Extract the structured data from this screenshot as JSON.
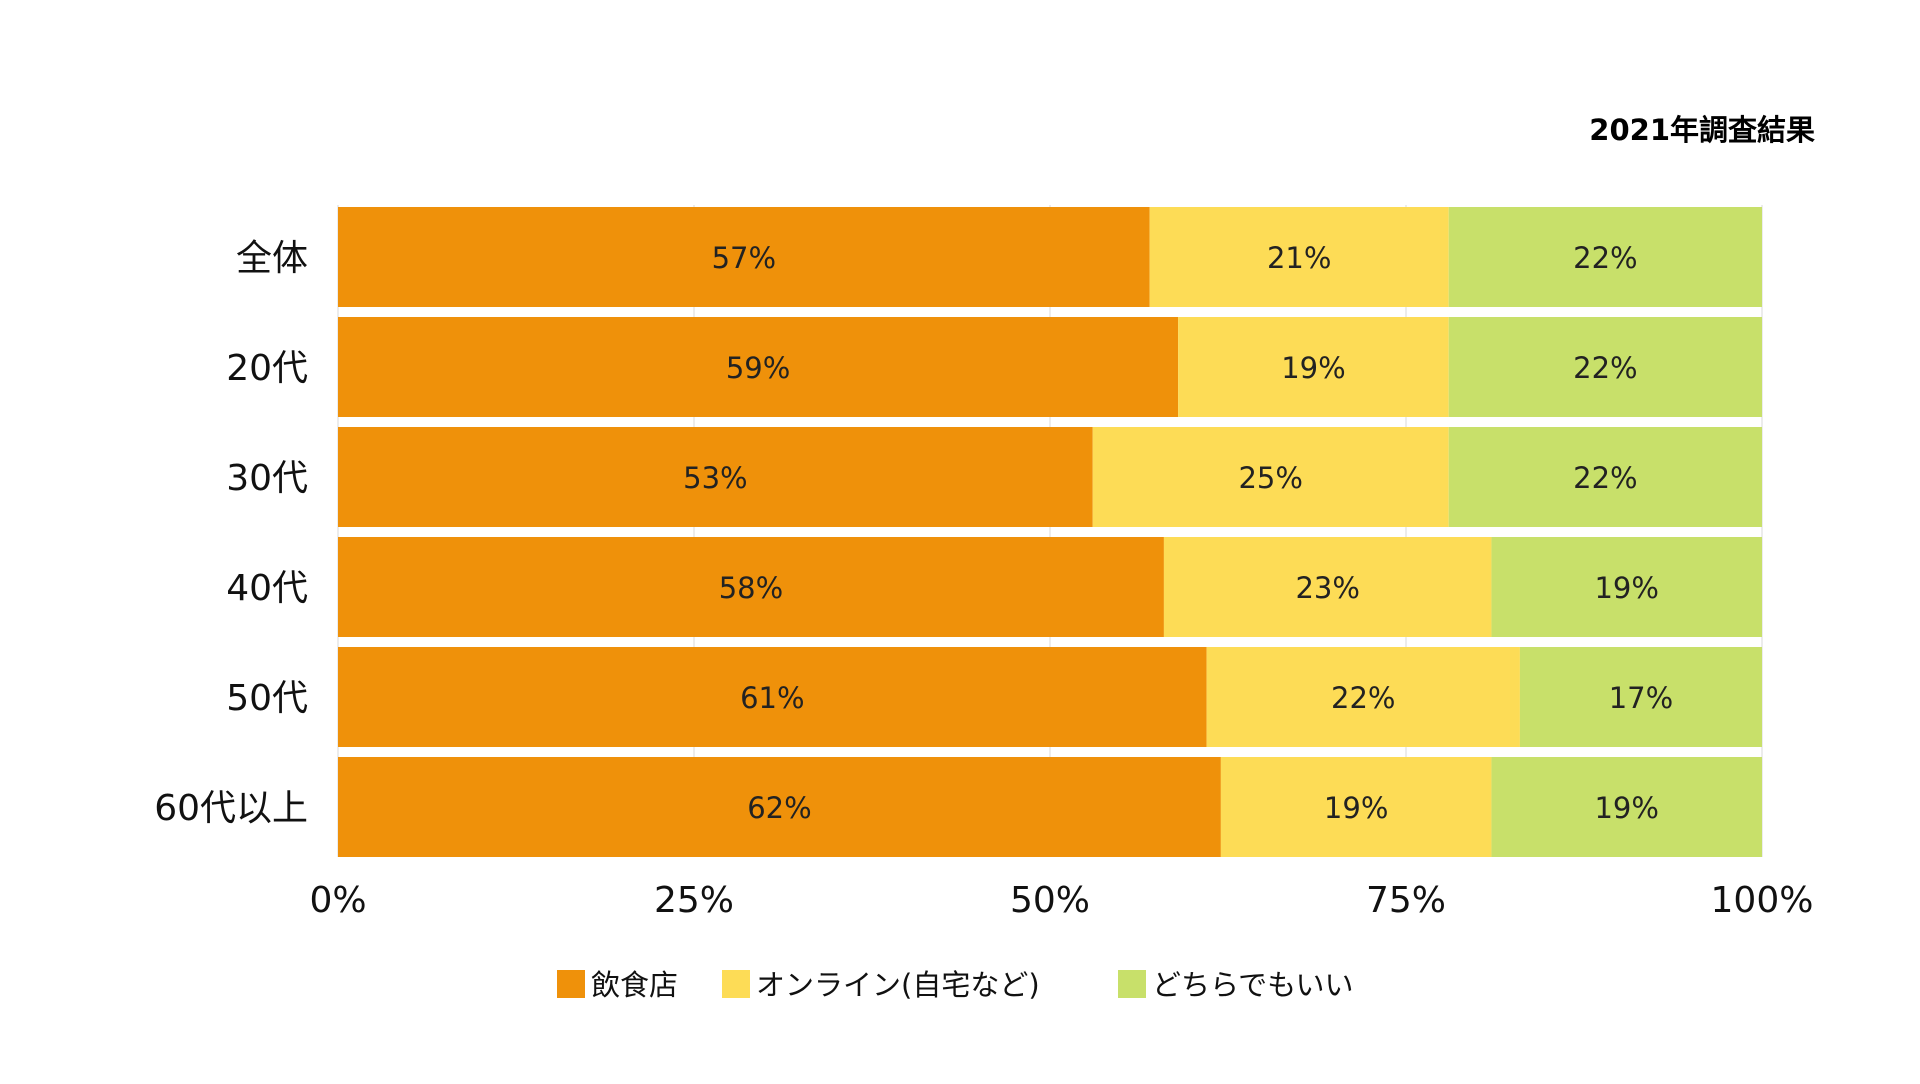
{
  "chart_data": {
    "type": "bar",
    "orientation": "horizontal",
    "stacked": true,
    "normalized": true,
    "title": "2021年調査結果",
    "categories": [
      "全体",
      "20代",
      "30代",
      "40代",
      "50代",
      "60代以上"
    ],
    "series": [
      {
        "name": "飲食店",
        "color": "#EF910A",
        "values": [
          57,
          59,
          53,
          58,
          61,
          62
        ],
        "labels": [
          "57%",
          "59%",
          "53%",
          "58%",
          "61%",
          "62%"
        ]
      },
      {
        "name": "オンライン(自宅など)",
        "color": "#FDDC56",
        "values": [
          21,
          19,
          25,
          23,
          22,
          19
        ],
        "labels": [
          "21%",
          "19%",
          "25%",
          "23%",
          "22%",
          "19%"
        ]
      },
      {
        "name": "どちらでもいい",
        "color": "#C8E06A",
        "values": [
          22,
          22,
          22,
          19,
          17,
          19
        ],
        "labels": [
          "22%",
          "22%",
          "22%",
          "19%",
          "17%",
          "19%"
        ]
      }
    ],
    "xlim": [
      0,
      100
    ],
    "xticks": [
      0,
      25,
      50,
      75,
      100
    ],
    "xtick_labels": [
      "0%",
      "25%",
      "50%",
      "75%",
      "100%"
    ],
    "grid": true,
    "legend_position": "bottom-center"
  }
}
